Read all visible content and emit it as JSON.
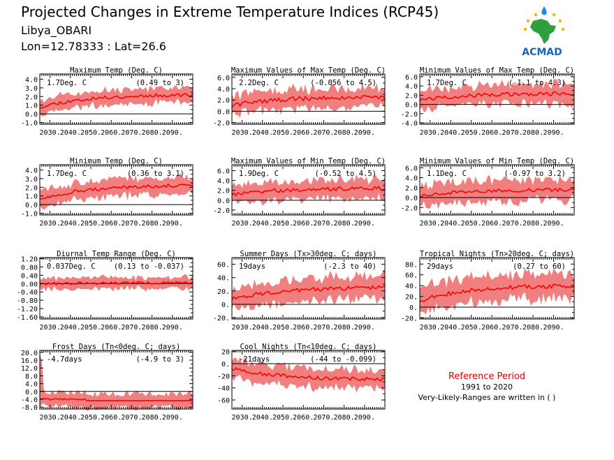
{
  "header": {
    "title": "Projected Changes in Extreme Temperature Indices (RCP45)",
    "location": "Libya_OBARI",
    "coords": "Lon=12.78333 : Lat=26.6",
    "logo_text": "ACMAD"
  },
  "x_tick_labels": [
    "2030.",
    "2040.",
    "2050.",
    "2060.",
    "2070.",
    "2080.",
    "2090."
  ],
  "reference": {
    "title": "Reference Period",
    "period": "1991 to 2020",
    "note": "Very-Likely-Ranges are written in ( )"
  },
  "colors": {
    "band": "#f08080",
    "line": "#ff0000",
    "zero": "#000000"
  },
  "chart_data": [
    {
      "type": "area",
      "title": "Maximum Temp (Deg. C)",
      "change": "1.7Deg. C",
      "range": "(0.49 to 3)",
      "ylim": [
        -1.2,
        4.6
      ],
      "yticks": [
        -1.0,
        0.0,
        1.0,
        2.0,
        3.0,
        4.0
      ],
      "ytick_labels": [
        "-1.0",
        "0.0",
        "1.0",
        "2.0",
        "3.0",
        "4.0"
      ],
      "start": 0.8,
      "end": 2.2,
      "curve": "sat",
      "noise": 0.2,
      "band": 0.8,
      "seed": 11
    },
    {
      "type": "area",
      "title": "Maximum Values of Max Temp (Deg. C)",
      "change": "2.2Deg. C",
      "range": "(-0.056 to 4.5)",
      "ylim": [
        -2.3,
        6.6
      ],
      "yticks": [
        -2.0,
        0.0,
        2.0,
        4.0,
        6.0
      ],
      "ytick_labels": [
        "-2.0",
        "0.0",
        "2.0",
        "4.0",
        "6.0"
      ],
      "start": 1.0,
      "end": 2.6,
      "curve": "sat",
      "noise": 0.4,
      "band": 1.6,
      "seed": 22
    },
    {
      "type": "area",
      "title": "Minimum Values of Max Temp (Deg. C)",
      "change": "1.7Deg. C",
      "range": "(-1.1 to 4.3)",
      "ylim": [
        -4.3,
        6.6
      ],
      "yticks": [
        -4.0,
        -2.0,
        0.0,
        2.0,
        4.0,
        6.0
      ],
      "ytick_labels": [
        "-4.0",
        "-2.0",
        "0.0",
        "2.0",
        "4.0",
        "6.0"
      ],
      "start": 0.9,
      "end": 2.4,
      "curve": "sat",
      "noise": 0.4,
      "band": 2.0,
      "seed": 33
    },
    {
      "type": "area",
      "title": "Minimum Temp (Deg. C)",
      "change": "1.7Deg. C",
      "range": "(0.36 to 3.1)",
      "ylim": [
        -1.2,
        4.6
      ],
      "yticks": [
        -1.0,
        0.0,
        1.0,
        2.0,
        3.0,
        4.0
      ],
      "ytick_labels": [
        "-1.0",
        "0.0",
        "1.0",
        "2.0",
        "3.0",
        "4.0"
      ],
      "start": 0.7,
      "end": 2.2,
      "curve": "sat",
      "noise": 0.2,
      "band": 0.9,
      "seed": 44
    },
    {
      "type": "area",
      "title": "Maximum Values of Min Temp (Deg. C)",
      "change": "1.9Deg. C",
      "range": "(-0.52 to 4.5)",
      "ylim": [
        -3.0,
        7.2
      ],
      "yticks": [
        -2.0,
        0.0,
        2.0,
        4.0,
        6.0
      ],
      "ytick_labels": [
        "-2.0",
        "0.0",
        "2.0",
        "4.0",
        "6.0"
      ],
      "start": 1.2,
      "end": 2.4,
      "curve": "sat",
      "noise": 0.4,
      "band": 1.8,
      "seed": 55
    },
    {
      "type": "area",
      "title": "Minimum Values of Min Temp (Deg. C)",
      "change": "1.1Deg. C",
      "range": "(-0.97 to 3.2)",
      "ylim": [
        -3.5,
        6.6
      ],
      "yticks": [
        -2.0,
        0.0,
        2.0,
        4.0,
        6.0
      ],
      "ytick_labels": [
        "-2.0",
        "0.0",
        "2.0",
        "4.0",
        "6.0"
      ],
      "start": 0.4,
      "end": 1.6,
      "curve": "sat",
      "noise": 0.35,
      "band": 2.0,
      "seed": 66
    },
    {
      "type": "area",
      "title": "Diurnal Temp Range (Deg. C)",
      "change": "0.037Deg. C",
      "range": "(0.13 to -0.037)",
      "ylim": [
        -1.7,
        1.25
      ],
      "yticks": [
        -1.6,
        -1.2,
        -0.8,
        -0.4,
        0.0,
        0.4,
        0.8,
        1.2
      ],
      "ytick_labels": [
        "-1.60",
        "-1.20",
        "-0.80",
        "-0.40",
        "0.00",
        "0.40",
        "0.80",
        "1.20"
      ],
      "start": 0.0,
      "end": 0.05,
      "curve": "lin",
      "noise": 0.06,
      "band": 0.25,
      "seed": 77
    },
    {
      "type": "area",
      "title": "Summer Days (Tx>30deg. C; days)",
      "change": "19days",
      "range": "(-2.3 to 40)",
      "ylim": [
        -22,
        70
      ],
      "yticks": [
        -20,
        0,
        20,
        40,
        60
      ],
      "ytick_labels": [
        "-20.",
        "0.",
        "20.",
        "40.",
        "60."
      ],
      "start": 8,
      "end": 25,
      "curve": "sat",
      "noise": 3,
      "band": 16,
      "seed": 88
    },
    {
      "type": "area",
      "title": "Tropical Nights (Tn>20deg. C; days)",
      "change": "29days",
      "range": "(0.27 to 60)",
      "ylim": [
        -22,
        92
      ],
      "yticks": [
        -20,
        0,
        20,
        40,
        60,
        80
      ],
      "ytick_labels": [
        "-20.",
        "0.",
        "20.",
        "40.",
        "60.",
        "80."
      ],
      "start": 12,
      "end": 40,
      "curve": "sat",
      "noise": 4,
      "band": 22,
      "seed": 99
    },
    {
      "type": "area",
      "title": "Frost Days (Tn<0deg. C; days)",
      "change": "-4.7days",
      "range": "(-4.9 to 3)",
      "ylim": [
        -9,
        21
      ],
      "yticks": [
        -8,
        -4,
        0,
        4,
        8,
        12,
        16,
        20
      ],
      "ytick_labels": [
        "-8.0",
        "-4.0",
        "0.0",
        "4.0",
        "8.0",
        "12.0",
        "16.0",
        "20.0"
      ],
      "start": -3.6,
      "end": -4.7,
      "curve": "frost",
      "noise": 0.4,
      "band": 3.5,
      "seed": 111
    },
    {
      "type": "area",
      "title": "Cool Nights (Tn<10deg. C; days)",
      "change": "-21days",
      "range": "(-44 to -0.099)",
      "ylim": [
        -75,
        22
      ],
      "yticks": [
        -60,
        -40,
        -20,
        0,
        20
      ],
      "ytick_labels": [
        "-60",
        "-40",
        "-20",
        "0.",
        "20"
      ],
      "start": -8,
      "end": -26,
      "curve": "sat",
      "noise": 3,
      "band": 15,
      "seed": 122
    }
  ]
}
